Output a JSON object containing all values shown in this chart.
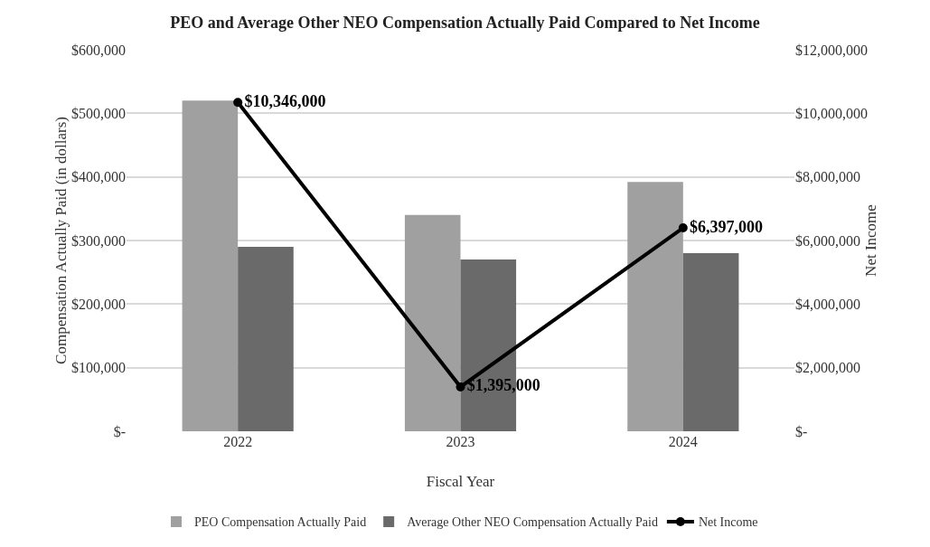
{
  "chart_data": {
    "type": "bar",
    "title": "PEO and Average Other NEO Compensation Actually Paid Compared to Net Income",
    "xlabel": "Fiscal Year",
    "ylabel": "Compensation Actually Paid (in dollars)",
    "y2label": "Net Income",
    "categories": [
      "2022",
      "2023",
      "2024"
    ],
    "series": [
      {
        "name": "PEO Compensation Actually Paid",
        "color": "#a0a0a0",
        "values": [
          520000,
          340000,
          392000
        ]
      },
      {
        "name": "Average Other NEO Compensation Actually Paid",
        "color": "#6a6a6a",
        "values": [
          290000,
          270000,
          280000
        ]
      },
      {
        "name": "Net Income",
        "type": "line",
        "axis": "y2",
        "color": "#000000",
        "marker": "circle",
        "values": [
          10346000,
          1395000,
          6397000
        ],
        "value_labels": [
          "$10,346,000",
          "$1,395,000",
          "$6,397,000"
        ]
      }
    ],
    "ylim": [
      0,
      600000
    ],
    "yticks": [
      {
        "value": 0,
        "label": "$-"
      },
      {
        "value": 100000,
        "label": "$100,000"
      },
      {
        "value": 200000,
        "label": "$200,000"
      },
      {
        "value": 300000,
        "label": "$300,000"
      },
      {
        "value": 400000,
        "label": "$400,000"
      },
      {
        "value": 500000,
        "label": "$500,000"
      },
      {
        "value": 600000,
        "label": "$600,000"
      }
    ],
    "y2lim": [
      0,
      12000000
    ],
    "y2ticks": [
      {
        "value": 0,
        "label": "$-"
      },
      {
        "value": 2000000,
        "label": "$2,000,000"
      },
      {
        "value": 4000000,
        "label": "$4,000,000"
      },
      {
        "value": 6000000,
        "label": "$6,000,000"
      },
      {
        "value": 8000000,
        "label": "$8,000,000"
      },
      {
        "value": 10000000,
        "label": "$10,000,000"
      },
      {
        "value": 12000000,
        "label": "$12,000,000"
      }
    ],
    "grid": "y",
    "legend": "bottom"
  }
}
